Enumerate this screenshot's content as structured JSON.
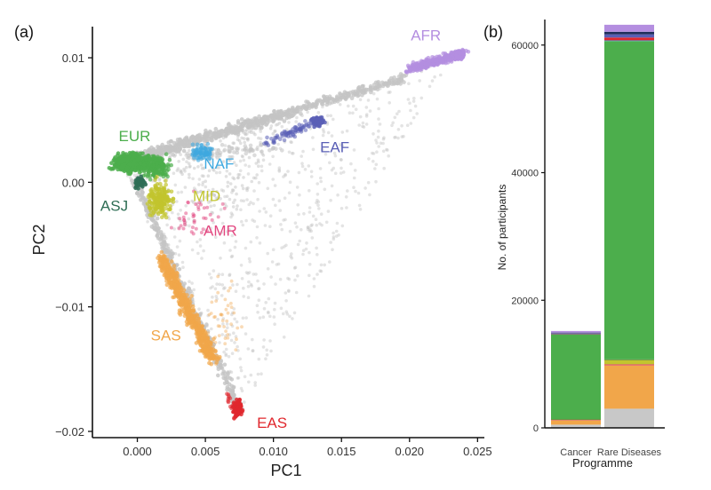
{
  "panels": {
    "a_label": "(a)",
    "b_label": "(b)"
  },
  "chart_data": [
    {
      "type": "scatter",
      "panel": "(a)",
      "xlabel": "PC1",
      "ylabel": "PC2",
      "xlim": [
        -0.0033,
        0.0255
      ],
      "ylim": [
        -0.0205,
        0.0125
      ],
      "xticks": [
        0.0,
        0.005,
        0.01,
        0.015,
        0.02,
        0.025
      ],
      "xtick_labels": [
        "0.000",
        "0.005",
        "0.010",
        "0.015",
        "0.020",
        "0.025"
      ],
      "yticks": [
        0.01,
        0.0,
        -0.01,
        -0.02
      ],
      "ytick_labels": [
        "0.01",
        "0.00",
        "−0.01",
        "−0.02"
      ],
      "grid": false,
      "background_color": "#c4c4c4",
      "clusters": [
        {
          "name": "AFR",
          "color": "#b48ee0",
          "label_at": [
            0.0212,
            0.0114
          ]
        },
        {
          "name": "EUR",
          "color": "#4cae4c",
          "label_at": [
            -0.0002,
            0.0033
          ]
        },
        {
          "name": "EAF",
          "color": "#5a5fb6",
          "label_at": [
            0.0145,
            0.0024
          ]
        },
        {
          "name": "NAF",
          "color": "#3fa9e0",
          "label_at": [
            0.006,
            0.0011
          ]
        },
        {
          "name": "MID",
          "color": "#c2c52e",
          "label_at": [
            0.0051,
            -0.0015
          ]
        },
        {
          "name": "ASJ",
          "color": "#2f6e55",
          "label_at": [
            -0.0017,
            -0.0023
          ]
        },
        {
          "name": "AMR",
          "color": "#e2467f",
          "label_at": [
            0.0061,
            -0.0043
          ]
        },
        {
          "name": "SAS",
          "color": "#f1a64a",
          "label_at": [
            0.0021,
            -0.0127
          ]
        },
        {
          "name": "EAS",
          "color": "#e0282e",
          "label_at": [
            0.0099,
            -0.0197
          ]
        }
      ]
    },
    {
      "type": "bar",
      "stacked": true,
      "panel": "(b)",
      "xlabel": "Programme",
      "ylabel": "No. of participants",
      "categories": [
        "Cancer",
        "Rare Diseases"
      ],
      "ylim": [
        0,
        64000
      ],
      "yticks": [
        0,
        20000,
        40000,
        60000
      ],
      "ytick_labels": [
        "0",
        "20000",
        "40000",
        "60000"
      ],
      "series": [
        {
          "color": "#c8c8c8",
          "values": [
            500,
            3000
          ]
        },
        {
          "color": "#f1a64a",
          "values": [
            700,
            6800
          ]
        },
        {
          "color": "#e2467f",
          "values": [
            20,
            150
          ]
        },
        {
          "color": "#c2c52e",
          "values": [
            150,
            700
          ]
        },
        {
          "color": "#2f6e55",
          "values": [
            20,
            80
          ]
        },
        {
          "color": "#4cae4c",
          "values": [
            13300,
            49900
          ]
        },
        {
          "color": "#3fa9e0",
          "values": [
            20,
            100
          ]
        },
        {
          "color": "#e0282e",
          "values": [
            60,
            450
          ]
        },
        {
          "color": "#5a5fb6",
          "values": [
            80,
            500
          ]
        },
        {
          "color": "#1f2f5c",
          "values": [
            80,
            400
          ]
        },
        {
          "color": "#b48ee0",
          "values": [
            250,
            1100
          ]
        }
      ]
    }
  ]
}
